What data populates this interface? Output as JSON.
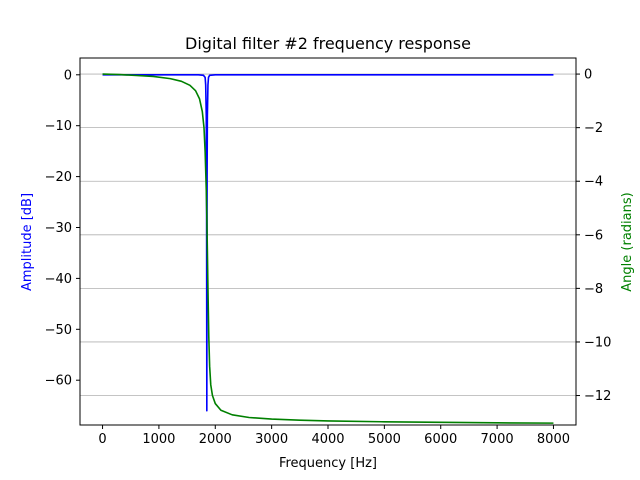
{
  "chart_data": {
    "type": "line",
    "title": "Digital filter #2 frequency response",
    "xlabel": "Frequency [Hz]",
    "ylabel_left": "Amplitude [dB]",
    "ylabel_right": "Angle (radians)",
    "xlim": [
      -400,
      8400
    ],
    "ylim_left": [
      -68.8,
      3.3
    ],
    "ylim_right": [
      -13.1,
      0.6
    ],
    "x_ticks": [
      0,
      1000,
      2000,
      3000,
      4000,
      5000,
      6000,
      7000,
      8000
    ],
    "y_left_ticks": [
      0,
      -10,
      -20,
      -30,
      -40,
      -50,
      -60
    ],
    "y_right_ticks": [
      0,
      -2,
      -4,
      -6,
      -8,
      -10,
      -12
    ],
    "x_tick_labels": [
      "0",
      "1000",
      "2000",
      "3000",
      "4000",
      "5000",
      "6000",
      "7000",
      "8000"
    ],
    "y_left_tick_labels": [
      "0",
      "−10",
      "−20",
      "−30",
      "−40",
      "−50",
      "−60"
    ],
    "y_right_tick_labels": [
      "0",
      "−2",
      "−4",
      "−6",
      "−8",
      "−10",
      "−12"
    ],
    "grid": "right-axis horizontal",
    "colors": {
      "amplitude": "#0000ff",
      "angle": "#008000",
      "grid": "#b0b0b0"
    },
    "series": [
      {
        "axis": "left",
        "color": "#0000ff",
        "x": [
          0,
          500,
          1000,
          1400,
          1700,
          1790,
          1820,
          1830,
          1840,
          1845,
          1850,
          1855,
          1860,
          1870,
          1880,
          1900,
          2000,
          3000,
          5000,
          8000
        ],
        "y": [
          0,
          0,
          0,
          0,
          0,
          -0.1,
          -0.5,
          -2,
          -8,
          -20,
          -66,
          -20,
          -8,
          -2,
          -0.5,
          -0.1,
          0,
          0,
          0,
          0
        ]
      },
      {
        "axis": "right",
        "color": "#008000",
        "x": [
          0,
          300,
          600,
          900,
          1200,
          1400,
          1550,
          1650,
          1720,
          1770,
          1800,
          1820,
          1840,
          1850,
          1860,
          1870,
          1885,
          1900,
          1920,
          1950,
          2000,
          2100,
          2300,
          2600,
          3000,
          3500,
          4000,
          5000,
          6000,
          7000,
          8000
        ],
        "y": [
          0,
          -0.02,
          -0.05,
          -0.09,
          -0.17,
          -0.27,
          -0.42,
          -0.62,
          -0.92,
          -1.4,
          -2.0,
          -2.9,
          -4.3,
          -5.3,
          -6.6,
          -8.0,
          -9.8,
          -10.9,
          -11.6,
          -12.0,
          -12.3,
          -12.55,
          -12.72,
          -12.82,
          -12.88,
          -12.92,
          -12.95,
          -12.98,
          -13.0,
          -13.02,
          -13.03
        ]
      }
    ]
  }
}
